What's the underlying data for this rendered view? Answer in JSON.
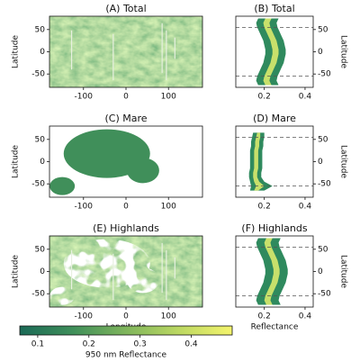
{
  "chart_data": [
    {
      "type": "map",
      "title": "(A) Total",
      "ylabel": "Latitude",
      "region": "all",
      "xlim": [
        -180,
        180
      ],
      "xticks": [
        -100,
        0,
        100
      ],
      "ylim": [
        -80,
        80
      ],
      "yticks": [
        -50,
        0,
        50
      ]
    },
    {
      "type": "profile",
      "title": "(B) Total",
      "ylabel": "Latitude",
      "xlim": [
        0.06,
        0.44
      ],
      "xticks": [
        0.2,
        0.4
      ],
      "ylim": [
        -80,
        80
      ],
      "yticks": [
        -50,
        0,
        50
      ],
      "outer_color": "#2f8a5e",
      "inner_color": "#c8e06b",
      "dashed_lines": [
        -55,
        55
      ],
      "latitudes": [
        -75,
        -65,
        -55,
        -45,
        -35,
        -25,
        -15,
        -5,
        5,
        15,
        25,
        35,
        45,
        55,
        65,
        75
      ],
      "outer_low": [
        0.17,
        0.16,
        0.165,
        0.175,
        0.185,
        0.195,
        0.2,
        0.205,
        0.205,
        0.2,
        0.195,
        0.185,
        0.175,
        0.165,
        0.16,
        0.17
      ],
      "inner_low": [
        0.205,
        0.195,
        0.2,
        0.21,
        0.22,
        0.23,
        0.235,
        0.24,
        0.24,
        0.235,
        0.23,
        0.22,
        0.21,
        0.2,
        0.195,
        0.205
      ],
      "inner_high": [
        0.235,
        0.225,
        0.23,
        0.24,
        0.25,
        0.26,
        0.265,
        0.27,
        0.27,
        0.265,
        0.26,
        0.25,
        0.24,
        0.23,
        0.225,
        0.235
      ],
      "outer_high": [
        0.27,
        0.26,
        0.265,
        0.275,
        0.285,
        0.295,
        0.3,
        0.305,
        0.305,
        0.3,
        0.295,
        0.285,
        0.275,
        0.265,
        0.26,
        0.27
      ]
    },
    {
      "type": "map",
      "title": "(C) Mare",
      "ylabel": "Latitude",
      "region": "mare",
      "xlim": [
        -180,
        180
      ],
      "xticks": [
        -100,
        0,
        100
      ],
      "ylim": [
        -80,
        80
      ],
      "yticks": [
        -50,
        0,
        50
      ]
    },
    {
      "type": "profile",
      "title": "(D) Mare",
      "ylabel": "Latitude",
      "xlim": [
        0.06,
        0.44
      ],
      "xticks": [
        0.2,
        0.4
      ],
      "ylim": [
        -80,
        80
      ],
      "yticks": [
        -50,
        0,
        50
      ],
      "outer_color": "#2f8a5e",
      "inner_color": "#c8e06b",
      "dashed_lines": [
        -55,
        55
      ],
      "latitudes": [
        -65,
        -55,
        -45,
        -35,
        -25,
        -15,
        -5,
        5,
        15,
        25,
        35,
        45,
        55,
        65
      ],
      "outer_low": [
        0.13,
        0.135,
        0.13,
        0.125,
        0.125,
        0.13,
        0.13,
        0.13,
        0.13,
        0.13,
        0.135,
        0.135,
        0.14,
        0.145
      ],
      "inner_low": [
        0.15,
        0.16,
        0.15,
        0.145,
        0.145,
        0.15,
        0.15,
        0.15,
        0.15,
        0.15,
        0.155,
        0.155,
        0.16,
        0.165
      ],
      "inner_high": [
        0.17,
        0.2,
        0.175,
        0.165,
        0.165,
        0.17,
        0.17,
        0.17,
        0.17,
        0.17,
        0.175,
        0.175,
        0.18,
        0.18
      ],
      "outer_high": [
        0.2,
        0.24,
        0.2,
        0.185,
        0.185,
        0.19,
        0.19,
        0.19,
        0.19,
        0.19,
        0.195,
        0.195,
        0.2,
        0.2
      ]
    },
    {
      "type": "map",
      "title": "(E) Highlands",
      "ylabel": "Latitude",
      "xlabel": "Longitude",
      "region": "highlands",
      "xlim": [
        -180,
        180
      ],
      "xticks": [
        -100,
        0,
        100
      ],
      "ylim": [
        -80,
        80
      ],
      "yticks": [
        -50,
        0,
        50
      ]
    },
    {
      "type": "profile",
      "title": "(F) Highlands",
      "ylabel": "Latitude",
      "xlabel": "Reflectance",
      "xlim": [
        0.06,
        0.44
      ],
      "xticks": [
        0.2,
        0.4
      ],
      "ylim": [
        -80,
        80
      ],
      "yticks": [
        -50,
        0,
        50
      ],
      "outer_color": "#2f8a5e",
      "inner_color": "#c8e06b",
      "dashed_lines": [
        -55,
        55
      ],
      "latitudes": [
        -75,
        -65,
        -55,
        -45,
        -35,
        -25,
        -15,
        -5,
        5,
        15,
        25,
        35,
        45,
        55,
        65,
        75
      ],
      "outer_low": [
        0.17,
        0.16,
        0.165,
        0.175,
        0.185,
        0.195,
        0.2,
        0.205,
        0.205,
        0.2,
        0.195,
        0.185,
        0.175,
        0.165,
        0.16,
        0.17
      ],
      "inner_low": [
        0.21,
        0.2,
        0.205,
        0.215,
        0.225,
        0.235,
        0.24,
        0.245,
        0.245,
        0.24,
        0.235,
        0.225,
        0.215,
        0.205,
        0.2,
        0.21
      ],
      "inner_high": [
        0.24,
        0.23,
        0.235,
        0.245,
        0.255,
        0.265,
        0.27,
        0.275,
        0.275,
        0.27,
        0.265,
        0.255,
        0.245,
        0.235,
        0.23,
        0.24
      ],
      "outer_high": [
        0.28,
        0.27,
        0.275,
        0.285,
        0.295,
        0.305,
        0.31,
        0.315,
        0.315,
        0.31,
        0.305,
        0.295,
        0.285,
        0.275,
        0.27,
        0.28
      ]
    },
    {
      "type": "colorbar",
      "xlabel": "950 nm Reflectance",
      "xlim": [
        0.065,
        0.48
      ],
      "xticks": [
        0.1,
        0.2,
        0.3,
        0.4
      ],
      "colormap": [
        "#1b6a57",
        "#3f8f5a",
        "#7fb55c",
        "#bcd862",
        "#f4f46c"
      ]
    }
  ]
}
